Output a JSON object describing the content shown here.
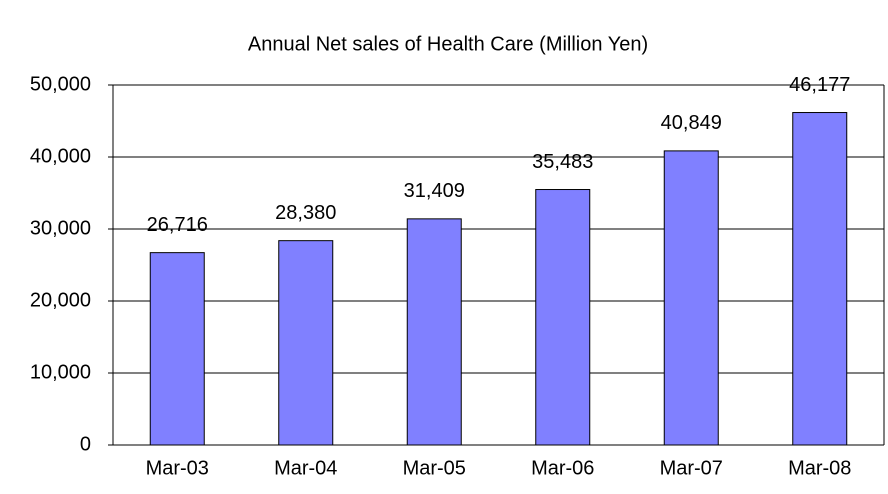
{
  "chart_data": {
    "type": "bar",
    "title": "Annual Net sales of Health Care (Million Yen)",
    "categories": [
      "Mar-03",
      "Mar-04",
      "Mar-05",
      "Mar-06",
      "Mar-07",
      "Mar-08"
    ],
    "values": [
      26716,
      28380,
      31409,
      35483,
      40849,
      46177
    ],
    "value_labels": [
      "26,716",
      "28,380",
      "31,409",
      "35,483",
      "40,849",
      "46,177"
    ],
    "color": "#8080ff",
    "ylim": [
      0,
      50000
    ],
    "yticks": [
      0,
      {
        "value": 10000,
        "label": "10,000"
      },
      {
        "value": 20000,
        "label": "20,000"
      },
      {
        "value": 30000,
        "label": "30,000"
      },
      {
        "value": 40000,
        "label": "40,000"
      },
      {
        "value": 50000,
        "label": "50,000"
      }
    ],
    "grid": true
  }
}
